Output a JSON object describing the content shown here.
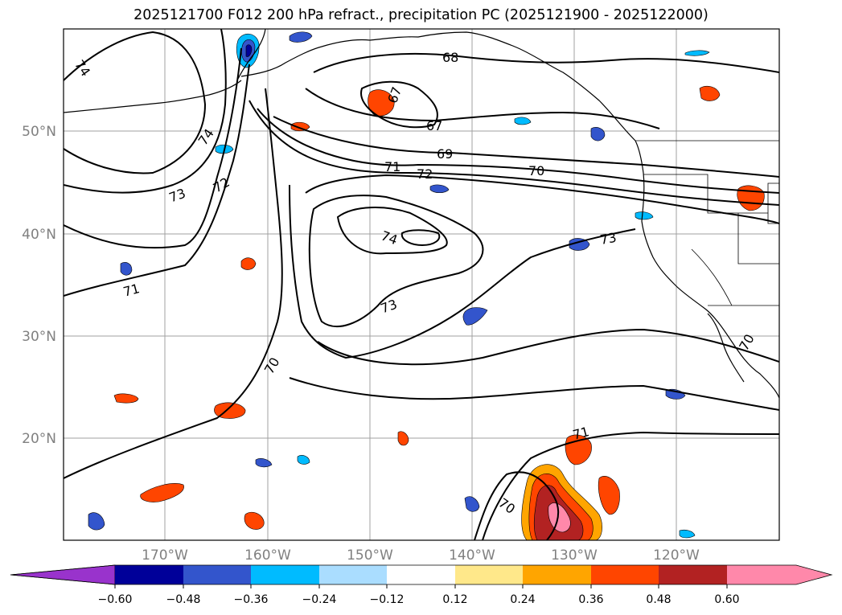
{
  "title": "2025121700 F012 200 hPa refract., precipitation PC (2025121900 - 2025122000)",
  "lat_labels": [
    "50°N",
    "40°N",
    "30°N",
    "20°N"
  ],
  "lon_labels": [
    "170°W",
    "160°W",
    "150°W",
    "140°W",
    "130°W",
    "120°W"
  ],
  "contour_labels": [
    "74",
    "74",
    "73",
    "72",
    "71",
    "70",
    "67",
    "68",
    "67",
    "69",
    "71",
    "72",
    "70",
    "74",
    "73",
    "73",
    "71",
    "70",
    "70"
  ],
  "colorbar": {
    "ticks": [
      "−0.60",
      "−0.48",
      "−0.36",
      "−0.24",
      "−0.12",
      "0.12",
      "0.24",
      "0.36",
      "0.48",
      "0.60"
    ],
    "colors": [
      "#9933cc",
      "#000099",
      "#3355cc",
      "#00bbff",
      "#aaddff",
      "#ffffff",
      "#ffe88a",
      "#ffa500",
      "#ff4500",
      "#b22222",
      "#ff88aa",
      "#ff88aa"
    ]
  },
  "colors": {
    "grid": "#a0a0a0",
    "contour": "#000000",
    "positive_low": "#ffa500",
    "positive_mid": "#ff4500",
    "positive_high": "#b22222",
    "positive_max": "#ff88aa",
    "negative_low": "#00bbff",
    "negative_mid": "#3355cc",
    "negative_high": "#000099"
  }
}
